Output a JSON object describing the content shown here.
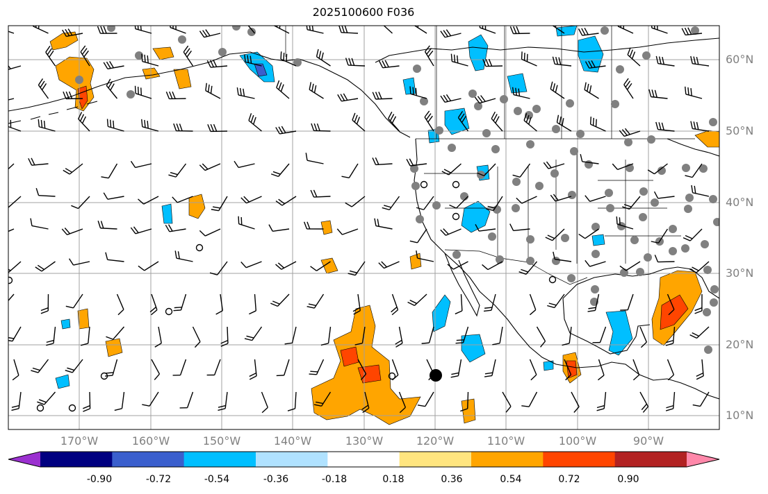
{
  "title": "2025100600 F036",
  "map": {
    "lon_range": [
      -180,
      -80
    ],
    "lat_range": [
      8,
      65
    ],
    "lat_labels": [
      "60°N",
      "50°N",
      "40°N",
      "30°N",
      "20°N",
      "10°N"
    ],
    "lon_labels": [
      "170°W",
      "160°W",
      "150°W",
      "140°W",
      "130°W",
      "120°W",
      "110°W",
      "100°W",
      "90°W"
    ],
    "gridline_color": "#a0a0a0",
    "coastline_color": "#000000",
    "station_dot_color": "#808080"
  },
  "colorbar": {
    "levels": [
      "-0.90",
      "-0.72",
      "-0.54",
      "-0.36",
      "-0.18",
      "0.18",
      "0.36",
      "0.54",
      "0.72",
      "0.90"
    ],
    "colors": [
      "#9b30d0",
      "#000080",
      "#3a5fcd",
      "#00bfff",
      "#b0e2ff",
      "#ffffff",
      "#ffe57f",
      "#ffa500",
      "#ff4500",
      "#b22222",
      "#ff88aa"
    ]
  }
}
